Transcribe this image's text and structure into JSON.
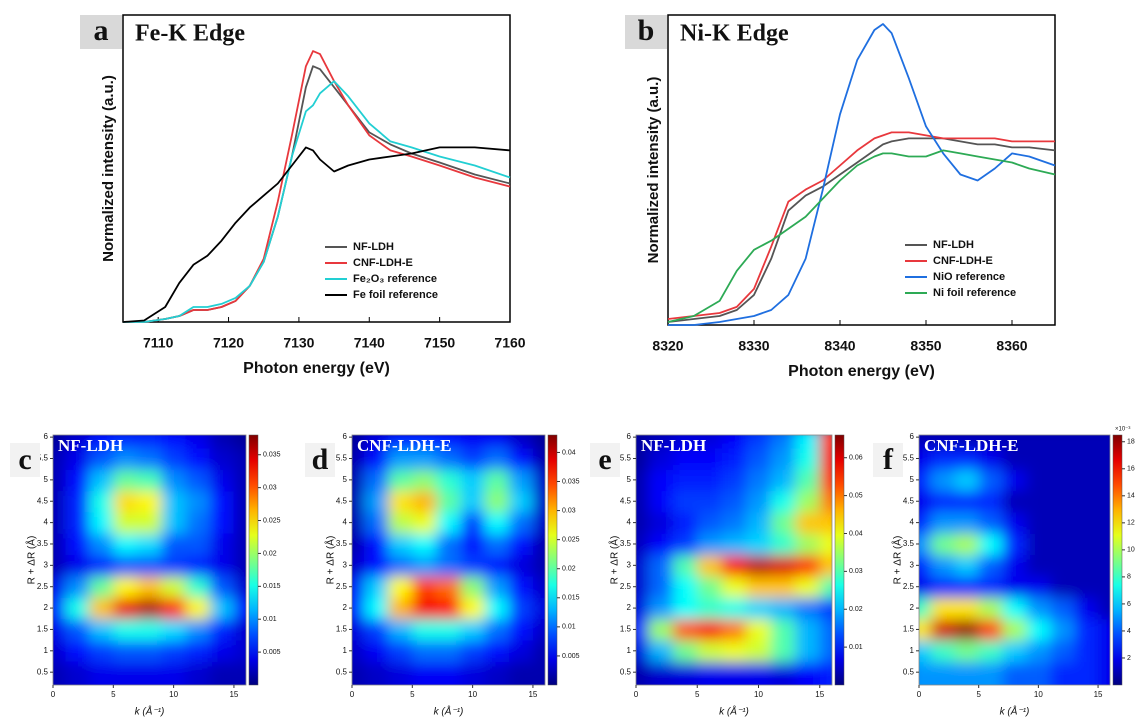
{
  "chart_data": [
    {
      "type": "line",
      "label": "a",
      "title": "Fe-K Edge",
      "xlabel": "Photon energy (eV)",
      "ylabel": "Normalized intensity (a.u.)",
      "x": [
        7105,
        7108,
        7111,
        7113,
        7115,
        7117,
        7119,
        7121,
        7123,
        7125,
        7127,
        7129,
        7131,
        7132,
        7133,
        7135,
        7137,
        7140,
        7143,
        7146,
        7150,
        7155,
        7160
      ],
      "xlim": [
        7105,
        7160
      ],
      "xticks": [
        7110,
        7120,
        7130,
        7140,
        7150,
        7160
      ],
      "ylim": [
        0,
        1.02
      ],
      "legend": "lower right",
      "series": [
        {
          "name": "NF-LDH",
          "color": "#555555",
          "values": [
            0,
            0,
            0.01,
            0.02,
            0.04,
            0.04,
            0.05,
            0.07,
            0.12,
            0.2,
            0.35,
            0.55,
            0.78,
            0.85,
            0.84,
            0.78,
            0.72,
            0.63,
            0.59,
            0.56,
            0.53,
            0.49,
            0.46
          ]
        },
        {
          "name": "CNF-LDH-E",
          "color": "#e8383d",
          "values": [
            0,
            0,
            0.01,
            0.02,
            0.04,
            0.04,
            0.05,
            0.07,
            0.12,
            0.21,
            0.4,
            0.62,
            0.85,
            0.9,
            0.89,
            0.8,
            0.72,
            0.62,
            0.57,
            0.55,
            0.52,
            0.48,
            0.45
          ]
        },
        {
          "name": "Fe₂O₃ reference",
          "color": "#22cfd3",
          "values": [
            0,
            0,
            0.01,
            0.02,
            0.05,
            0.05,
            0.06,
            0.08,
            0.12,
            0.2,
            0.35,
            0.55,
            0.7,
            0.72,
            0.76,
            0.8,
            0.75,
            0.66,
            0.6,
            0.58,
            0.55,
            0.52,
            0.48
          ]
        },
        {
          "name": "Fe foil reference",
          "color": "#000000",
          "values": [
            0,
            0.005,
            0.05,
            0.13,
            0.19,
            0.22,
            0.27,
            0.33,
            0.38,
            0.42,
            0.46,
            0.52,
            0.58,
            0.57,
            0.54,
            0.5,
            0.52,
            0.54,
            0.55,
            0.56,
            0.58,
            0.58,
            0.57
          ]
        }
      ]
    },
    {
      "type": "line",
      "label": "b",
      "title": "Ni-K Edge",
      "xlabel": "Photon energy (eV)",
      "ylabel": "Normalized intensity (a.u.)",
      "x": [
        8320,
        8323,
        8326,
        8328,
        8330,
        8332,
        8334,
        8336,
        8338,
        8340,
        8342,
        8344,
        8345,
        8346,
        8348,
        8350,
        8352,
        8354,
        8356,
        8358,
        8360,
        8362,
        8365
      ],
      "xlim": [
        8320,
        8365
      ],
      "xticks": [
        8320,
        8330,
        8340,
        8350,
        8360
      ],
      "ylim": [
        0,
        1.03
      ],
      "legend": "lower right",
      "series": [
        {
          "name": "NF-LDH",
          "color": "#555555",
          "values": [
            0.01,
            0.02,
            0.03,
            0.05,
            0.1,
            0.22,
            0.38,
            0.43,
            0.46,
            0.5,
            0.54,
            0.58,
            0.6,
            0.61,
            0.62,
            0.62,
            0.62,
            0.61,
            0.6,
            0.6,
            0.59,
            0.59,
            0.58
          ]
        },
        {
          "name": "CNF-LDH-E",
          "color": "#e8383d",
          "values": [
            0.02,
            0.03,
            0.04,
            0.06,
            0.12,
            0.26,
            0.41,
            0.45,
            0.48,
            0.53,
            0.58,
            0.62,
            0.63,
            0.64,
            0.64,
            0.63,
            0.62,
            0.62,
            0.62,
            0.62,
            0.61,
            0.61,
            0.61
          ]
        },
        {
          "name": "NiO reference",
          "color": "#1f6fe0",
          "values": [
            0,
            0,
            0.01,
            0.02,
            0.03,
            0.05,
            0.1,
            0.22,
            0.45,
            0.7,
            0.88,
            0.98,
            1.0,
            0.97,
            0.82,
            0.66,
            0.57,
            0.5,
            0.48,
            0.52,
            0.57,
            0.56,
            0.53
          ]
        },
        {
          "name": "Ni  foil reference",
          "color": "#2daa55",
          "values": [
            0.01,
            0.03,
            0.08,
            0.18,
            0.25,
            0.28,
            0.32,
            0.36,
            0.42,
            0.48,
            0.53,
            0.56,
            0.57,
            0.57,
            0.56,
            0.56,
            0.58,
            0.57,
            0.56,
            0.55,
            0.54,
            0.52,
            0.5
          ]
        }
      ]
    },
    {
      "type": "contour",
      "label": "c",
      "title": "NF-LDH",
      "xlabel": "k (Å⁻¹)",
      "ylabel": "R + ΔR (Å)",
      "colormap": "jet",
      "x": [
        0,
        2,
        4,
        6,
        8,
        10,
        12,
        14,
        16
      ],
      "y": [
        0.5,
        1,
        1.5,
        2,
        2.5,
        3,
        3.5,
        4,
        4.5,
        5,
        5.5,
        6
      ],
      "xlim": [
        0,
        16
      ],
      "xticks": [
        0,
        5,
        10,
        15
      ],
      "ylim": [
        0.2,
        6.05
      ],
      "yticks": [
        0.5,
        1,
        1.5,
        2,
        2.5,
        3,
        3.5,
        4,
        4.5,
        5,
        5.5,
        6
      ],
      "zlim": [
        0,
        0.038
      ],
      "zticks": [
        0.005,
        0.01,
        0.015,
        0.02,
        0.025,
        0.03,
        0.035
      ],
      "z": [
        [
          0.002,
          0.003,
          0.004,
          0.004,
          0.004,
          0.004,
          0.003,
          0.002,
          0.002
        ],
        [
          0.003,
          0.005,
          0.007,
          0.008,
          0.008,
          0.007,
          0.006,
          0.004,
          0.003
        ],
        [
          0.004,
          0.008,
          0.012,
          0.015,
          0.015,
          0.013,
          0.01,
          0.006,
          0.003
        ],
        [
          0.006,
          0.015,
          0.026,
          0.034,
          0.036,
          0.032,
          0.024,
          0.012,
          0.005
        ],
        [
          0.004,
          0.01,
          0.018,
          0.024,
          0.026,
          0.022,
          0.016,
          0.008,
          0.003
        ],
        [
          0.002,
          0.004,
          0.006,
          0.008,
          0.008,
          0.007,
          0.006,
          0.004,
          0.002
        ],
        [
          0.002,
          0.005,
          0.01,
          0.014,
          0.013,
          0.008,
          0.008,
          0.004,
          0.002
        ],
        [
          0.002,
          0.006,
          0.014,
          0.022,
          0.022,
          0.012,
          0.009,
          0.005,
          0.002
        ],
        [
          0.002,
          0.006,
          0.015,
          0.025,
          0.024,
          0.012,
          0.01,
          0.005,
          0.002
        ],
        [
          0.002,
          0.005,
          0.012,
          0.018,
          0.017,
          0.01,
          0.008,
          0.004,
          0.002
        ],
        [
          0.002,
          0.004,
          0.008,
          0.01,
          0.009,
          0.007,
          0.005,
          0.003,
          0.002
        ],
        [
          0.001,
          0.003,
          0.005,
          0.006,
          0.006,
          0.005,
          0.004,
          0.002,
          0.001
        ]
      ]
    },
    {
      "type": "contour",
      "label": "d",
      "title": "CNF-LDH-E",
      "xlabel": "k (Å⁻¹)",
      "ylabel": "R + ΔR (Å)",
      "colormap": "jet",
      "x": [
        0,
        2,
        4,
        6,
        8,
        10,
        12,
        14,
        16
      ],
      "y": [
        0.5,
        1,
        1.5,
        2,
        2.5,
        3,
        3.5,
        4,
        4.5,
        5,
        5.5,
        6
      ],
      "xlim": [
        0,
        16
      ],
      "xticks": [
        0,
        5,
        10,
        15
      ],
      "ylim": [
        0.2,
        6.05
      ],
      "yticks": [
        0.5,
        1,
        1.5,
        2,
        2.5,
        3,
        3.5,
        4,
        4.5,
        5,
        5.5,
        6
      ],
      "zlim": [
        0,
        0.043
      ],
      "zticks": [
        0.005,
        0.01,
        0.015,
        0.02,
        0.025,
        0.03,
        0.035,
        0.04
      ],
      "z": [
        [
          0.002,
          0.003,
          0.004,
          0.005,
          0.005,
          0.004,
          0.003,
          0.002,
          0.002
        ],
        [
          0.003,
          0.005,
          0.008,
          0.01,
          0.01,
          0.008,
          0.006,
          0.004,
          0.002
        ],
        [
          0.004,
          0.008,
          0.013,
          0.017,
          0.017,
          0.014,
          0.01,
          0.006,
          0.003
        ],
        [
          0.006,
          0.016,
          0.03,
          0.038,
          0.037,
          0.027,
          0.016,
          0.008,
          0.004
        ],
        [
          0.005,
          0.014,
          0.027,
          0.035,
          0.033,
          0.022,
          0.012,
          0.006,
          0.003
        ],
        [
          0.003,
          0.006,
          0.01,
          0.012,
          0.01,
          0.008,
          0.006,
          0.004,
          0.002
        ],
        [
          0.002,
          0.006,
          0.014,
          0.016,
          0.01,
          0.006,
          0.01,
          0.006,
          0.002
        ],
        [
          0.002,
          0.01,
          0.024,
          0.026,
          0.016,
          0.008,
          0.016,
          0.01,
          0.003
        ],
        [
          0.002,
          0.012,
          0.028,
          0.03,
          0.02,
          0.014,
          0.022,
          0.014,
          0.003
        ],
        [
          0.002,
          0.01,
          0.02,
          0.022,
          0.018,
          0.014,
          0.02,
          0.012,
          0.003
        ],
        [
          0.002,
          0.006,
          0.012,
          0.012,
          0.01,
          0.008,
          0.01,
          0.006,
          0.002
        ],
        [
          0.001,
          0.004,
          0.006,
          0.006,
          0.006,
          0.005,
          0.005,
          0.003,
          0.001
        ]
      ]
    },
    {
      "type": "contour",
      "label": "e",
      "title": "NF-LDH",
      "xlabel": "k (Å⁻¹)",
      "ylabel": "R + ΔR (Å)",
      "colormap": "jet",
      "x": [
        0,
        2,
        4,
        6,
        8,
        10,
        12,
        14,
        16
      ],
      "y": [
        0.5,
        1,
        1.5,
        2,
        2.5,
        3,
        3.5,
        4,
        4.5,
        5,
        5.5,
        6
      ],
      "xlim": [
        0,
        16
      ],
      "xticks": [
        0,
        5,
        10,
        15
      ],
      "ylim": [
        0.2,
        6.05
      ],
      "yticks": [
        0.5,
        1,
        1.5,
        2,
        2.5,
        3,
        3.5,
        4,
        4.5,
        5,
        5.5,
        6
      ],
      "zlim": [
        0,
        0.066
      ],
      "zticks": [
        0.01,
        0.02,
        0.03,
        0.04,
        0.05,
        0.06
      ],
      "z": [
        [
          0.003,
          0.005,
          0.006,
          0.007,
          0.007,
          0.007,
          0.006,
          0.008,
          0.01
        ],
        [
          0.006,
          0.02,
          0.032,
          0.038,
          0.04,
          0.038,
          0.03,
          0.02,
          0.015
        ],
        [
          0.01,
          0.035,
          0.052,
          0.058,
          0.05,
          0.04,
          0.03,
          0.02,
          0.015
        ],
        [
          0.006,
          0.018,
          0.025,
          0.028,
          0.026,
          0.022,
          0.02,
          0.016,
          0.012
        ],
        [
          0.005,
          0.015,
          0.025,
          0.032,
          0.04,
          0.045,
          0.045,
          0.04,
          0.03
        ],
        [
          0.005,
          0.015,
          0.03,
          0.045,
          0.058,
          0.062,
          0.06,
          0.055,
          0.045
        ],
        [
          0.004,
          0.008,
          0.012,
          0.018,
          0.02,
          0.022,
          0.028,
          0.035,
          0.04
        ],
        [
          0.003,
          0.006,
          0.01,
          0.014,
          0.016,
          0.02,
          0.032,
          0.045,
          0.045
        ],
        [
          0.003,
          0.008,
          0.012,
          0.012,
          0.014,
          0.018,
          0.026,
          0.035,
          0.05
        ],
        [
          0.003,
          0.008,
          0.01,
          0.01,
          0.012,
          0.016,
          0.02,
          0.03,
          0.055
        ],
        [
          0.002,
          0.006,
          0.008,
          0.008,
          0.01,
          0.014,
          0.018,
          0.026,
          0.058
        ],
        [
          0.002,
          0.004,
          0.006,
          0.006,
          0.008,
          0.012,
          0.016,
          0.024,
          0.055
        ]
      ]
    },
    {
      "type": "contour",
      "label": "f",
      "title": "CNF-LDH-E",
      "xlabel": "k (Å⁻¹)",
      "ylabel": "R + ΔR (Å)",
      "colormap": "jet",
      "x": [
        0,
        2,
        4,
        6,
        8,
        10,
        12,
        14,
        16
      ],
      "y": [
        0.5,
        1,
        1.5,
        2,
        2.5,
        3,
        3.5,
        4,
        4.5,
        5,
        5.5,
        6
      ],
      "xlim": [
        0,
        16
      ],
      "xticks": [
        0,
        5,
        10,
        15
      ],
      "ylim": [
        0.2,
        6.05
      ],
      "yticks": [
        0.5,
        1,
        1.5,
        2,
        2.5,
        3,
        3.5,
        4,
        4.5,
        5,
        5.5,
        6
      ],
      "zlim": [
        0,
        18.5
      ],
      "zticks": [
        2,
        4,
        6,
        8,
        10,
        12,
        14,
        16,
        18
      ],
      "zoffset_label": "×10⁻³",
      "z": [
        [
          5,
          5,
          5,
          5,
          4,
          4,
          3,
          3,
          2
        ],
        [
          6,
          8,
          9,
          8,
          6,
          5,
          4,
          3,
          2
        ],
        [
          12,
          17,
          18,
          15,
          10,
          7,
          5,
          3,
          2
        ],
        [
          8,
          12,
          12,
          10,
          7,
          5,
          4,
          2,
          1
        ],
        [
          2,
          3,
          3,
          3,
          2,
          2,
          1,
          1,
          1
        ],
        [
          3,
          5,
          6,
          4,
          2,
          1,
          1,
          1,
          1
        ],
        [
          5,
          9,
          10,
          7,
          3,
          1,
          1,
          1,
          1
        ],
        [
          3,
          5,
          5,
          4,
          2,
          1,
          1,
          1,
          1
        ],
        [
          2,
          3,
          3,
          3,
          1,
          1,
          1,
          1,
          1
        ],
        [
          3,
          5,
          6,
          4,
          2,
          1,
          1,
          1,
          1
        ],
        [
          2,
          3,
          3,
          2,
          1,
          1,
          1,
          1,
          1
        ],
        [
          1,
          1,
          1,
          1,
          1,
          1,
          1,
          1,
          1
        ]
      ]
    }
  ]
}
